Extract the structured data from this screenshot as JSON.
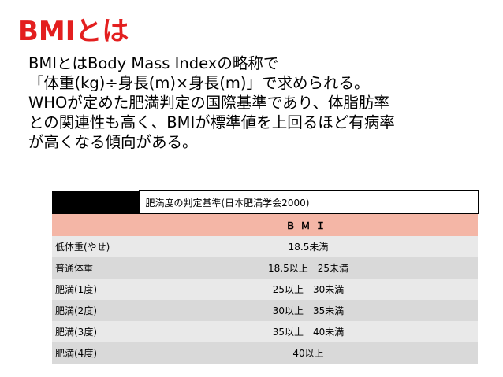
{
  "title": "BMIとは",
  "body_lines": [
    "BMIとはBody Mass Indexの略称で",
    "「体重(kg)÷身長(m)×身長(m)」で求められる。",
    "WHOが定めた肥満判定の国際基準であり、体脂肪率",
    "との関連性も高く、BMIが標準値を上回るほど有病率",
    "が高くなる傾向がある。"
  ],
  "table": {
    "criteria_label": "肥満度の判定基準(日本肥満学会2000)",
    "bmi_header": "ＢＭＩ",
    "rows": [
      {
        "category": "低体重(やせ)",
        "range": "18.5未満"
      },
      {
        "category": "普通体重",
        "range": "18.5以上　25未満"
      },
      {
        "category": "肥満(1度)",
        "range": "25以上　30未満"
      },
      {
        "category": "肥満(2度)",
        "range": "30以上　35未満"
      },
      {
        "category": "肥満(3度)",
        "range": "35以上　40未満"
      },
      {
        "category": "肥満(4度)",
        "range": "40以上"
      }
    ]
  },
  "colors": {
    "title": "#e31f1f",
    "header_row": "#f4b6a6",
    "row_light": "#e9e9e9",
    "row_dark": "#d9d9d9"
  }
}
